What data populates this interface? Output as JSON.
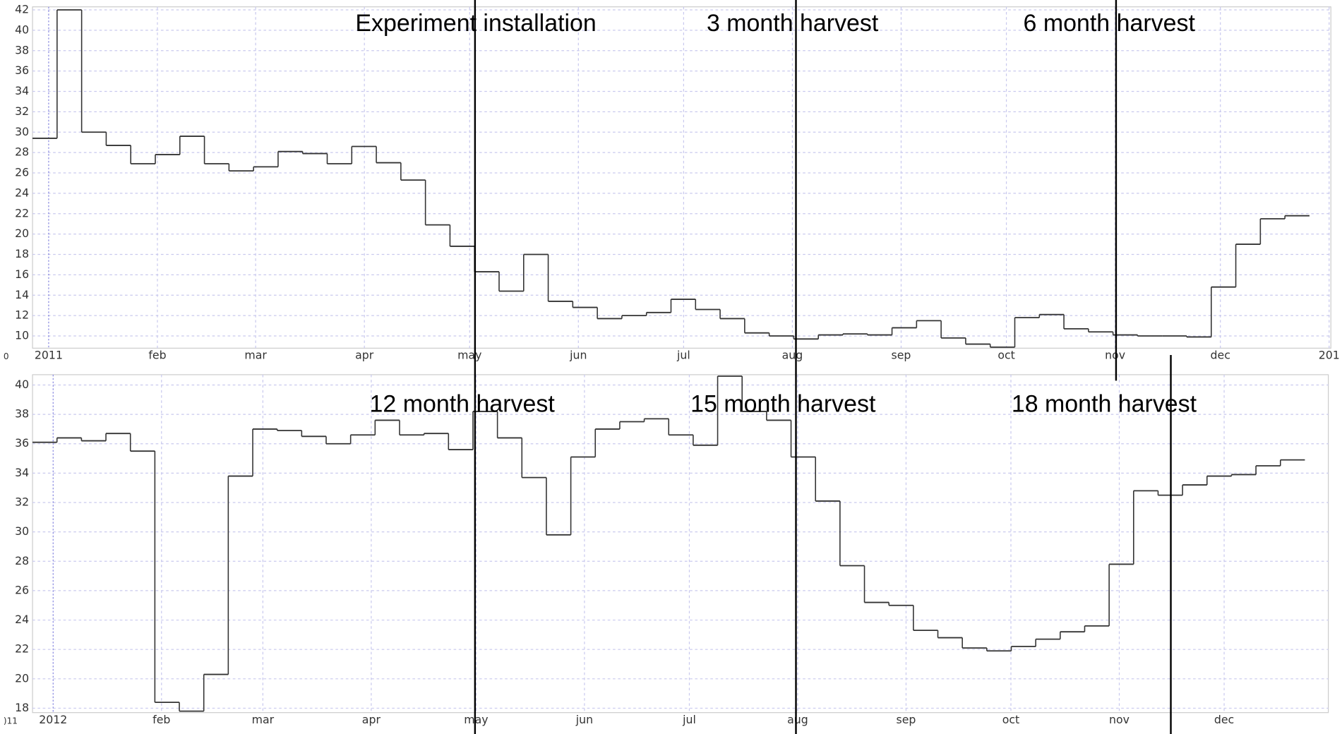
{
  "charts": [
    {
      "type": "step",
      "xlim": [
        -4.6,
        365.5
      ],
      "ylim": [
        8.8,
        42.3
      ],
      "xticks": [
        {
          "value": 0,
          "label": "2011"
        },
        {
          "value": 31,
          "label": "feb"
        },
        {
          "value": 59,
          "label": "mar"
        },
        {
          "value": 90,
          "label": "apr"
        },
        {
          "value": 120,
          "label": "may"
        },
        {
          "value": 151,
          "label": "jun"
        },
        {
          "value": 181,
          "label": "jul"
        },
        {
          "value": 212,
          "label": "aug"
        },
        {
          "value": 243,
          "label": "sep"
        },
        {
          "value": 273,
          "label": "oct"
        },
        {
          "value": 304,
          "label": "nov"
        },
        {
          "value": 334,
          "label": "dec"
        },
        {
          "value": 365,
          "label": "201"
        }
      ],
      "yticks": [
        10,
        12,
        14,
        16,
        18,
        20,
        22,
        24,
        26,
        28,
        30,
        32,
        34,
        36,
        38,
        40,
        42
      ],
      "grid": true,
      "color": "#333333",
      "corner_label": "0",
      "bins": [
        -4.6,
        2.4,
        9.4,
        16.4,
        23.4,
        30.4,
        37.4,
        44.4,
        51.4,
        58.4,
        65.4,
        72.4,
        79.4,
        86.4,
        93.4,
        100.4,
        107.4,
        114.4,
        121.4,
        128.4,
        135.4,
        142.4,
        149.4,
        156.4,
        163.4,
        170.4,
        177.4,
        184.4,
        191.4,
        198.4,
        205.4,
        212.4,
        219.4,
        226.4,
        233.4,
        240.4,
        247.4,
        254.4,
        261.4,
        268.4,
        275.4,
        282.4,
        289.4,
        296.4,
        303.4,
        310.4,
        317.4,
        324.4,
        331.4,
        338.4,
        345.4,
        352.4,
        359.4
      ],
      "values": [
        29.4,
        42,
        30,
        28.7,
        26.9,
        27.8,
        29.6,
        26.9,
        26.2,
        26.6,
        28.1,
        27.9,
        26.9,
        28.6,
        27,
        25.3,
        20.9,
        18.8,
        16.3,
        14.4,
        18,
        13.4,
        12.8,
        11.7,
        12,
        12.3,
        13.6,
        12.6,
        11.7,
        10.3,
        10,
        9.7,
        10.1,
        10.2,
        10.1,
        10.8,
        11.5,
        9.8,
        9.2,
        8.9,
        11.8,
        12.1,
        10.7,
        10.4,
        10.1,
        10,
        10,
        9.9,
        14.8,
        19,
        21.5,
        21.8
      ],
      "annotations": [
        "Experiment installation",
        "3 month harvest",
        "6 month harvest"
      ]
    },
    {
      "type": "step",
      "xlim": [
        -5.9,
        364.8
      ],
      "ylim": [
        17.7,
        40.7
      ],
      "xticks": [
        {
          "value": 0,
          "label": "2012"
        },
        {
          "value": 31,
          "label": "feb"
        },
        {
          "value": 60,
          "label": "mar"
        },
        {
          "value": 91,
          "label": "apr"
        },
        {
          "value": 121,
          "label": "may"
        },
        {
          "value": 152,
          "label": "jun"
        },
        {
          "value": 182,
          "label": "jul"
        },
        {
          "value": 213,
          "label": "aug"
        },
        {
          "value": 244,
          "label": "sep"
        },
        {
          "value": 274,
          "label": "oct"
        },
        {
          "value": 305,
          "label": "nov"
        },
        {
          "value": 335,
          "label": "dec"
        }
      ],
      "yticks": [
        18,
        20,
        22,
        24,
        26,
        28,
        30,
        32,
        34,
        36,
        38,
        40
      ],
      "grid": true,
      "color": "#333333",
      "corner_label": ")11",
      "bins": [
        -5.9,
        1.1,
        8.1,
        15.1,
        22.1,
        29.1,
        36.1,
        43.1,
        50.1,
        57.1,
        64.1,
        71.1,
        78.1,
        85.1,
        92.1,
        99.1,
        106.1,
        113.1,
        120.1,
        127.1,
        134.1,
        141.1,
        148.1,
        155.1,
        162.1,
        169.1,
        176.1,
        183.1,
        190.1,
        197.1,
        204.1,
        211.1,
        218.1,
        225.1,
        232.1,
        239.1,
        246.1,
        253.1,
        260.1,
        267.1,
        274.1,
        281.1,
        288.1,
        295.1,
        302.1,
        309.1,
        316.1,
        323.1,
        330.1,
        337.1,
        344.1,
        351.1,
        358.1
      ],
      "values": [
        36.1,
        36.4,
        36.2,
        36.7,
        35.5,
        18.4,
        17.8,
        20.3,
        33.8,
        37,
        36.9,
        36.5,
        36,
        36.6,
        37.6,
        36.6,
        36.7,
        35.6,
        38.2,
        36.4,
        33.7,
        29.8,
        35.1,
        37,
        37.5,
        37.7,
        36.6,
        35.9,
        40.6,
        38.2,
        37.6,
        35.1,
        32.1,
        27.7,
        25.2,
        25,
        23.3,
        22.8,
        22.1,
        21.9,
        22.2,
        22.7,
        23.2,
        23.6,
        27.8,
        32.8,
        32.5,
        33.2,
        33.8,
        33.9,
        34.5,
        34.9
      ],
      "annotations": [
        "12 month harvest",
        "15 month harvest",
        "18 month harvest"
      ]
    }
  ]
}
